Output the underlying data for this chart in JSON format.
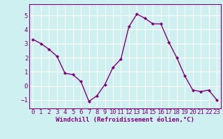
{
  "x": [
    0,
    1,
    2,
    3,
    4,
    5,
    6,
    7,
    8,
    9,
    10,
    11,
    12,
    13,
    14,
    15,
    16,
    17,
    18,
    19,
    20,
    21,
    22,
    23
  ],
  "y": [
    3.3,
    3.0,
    2.6,
    2.1,
    0.9,
    0.8,
    0.3,
    -1.1,
    -0.7,
    0.1,
    1.3,
    1.9,
    4.2,
    5.1,
    4.8,
    4.4,
    4.4,
    3.1,
    2.0,
    0.7,
    -0.3,
    -0.4,
    -0.3,
    -1.0
  ],
  "line_color": "#800080",
  "marker": "D",
  "marker_size": 2.2,
  "linewidth": 1.0,
  "bg_color": "#cff0f0",
  "grid_color": "#ffffff",
  "xlabel": "Windchill (Refroidissement éolien,°C)",
  "xlabel_color": "#800080",
  "tick_color": "#800080",
  "spine_color": "#800080",
  "xlim": [
    -0.5,
    23.5
  ],
  "ylim": [
    -1.6,
    5.8
  ],
  "yticks": [
    -1,
    0,
    1,
    2,
    3,
    4,
    5
  ],
  "xtick_labels": [
    "0",
    "1",
    "2",
    "3",
    "4",
    "5",
    "6",
    "7",
    "8",
    "9",
    "10",
    "11",
    "12",
    "13",
    "14",
    "15",
    "16",
    "17",
    "18",
    "19",
    "20",
    "21",
    "22",
    "23"
  ],
  "axis_label_fontsize": 6.5,
  "tick_fontsize": 6.5
}
